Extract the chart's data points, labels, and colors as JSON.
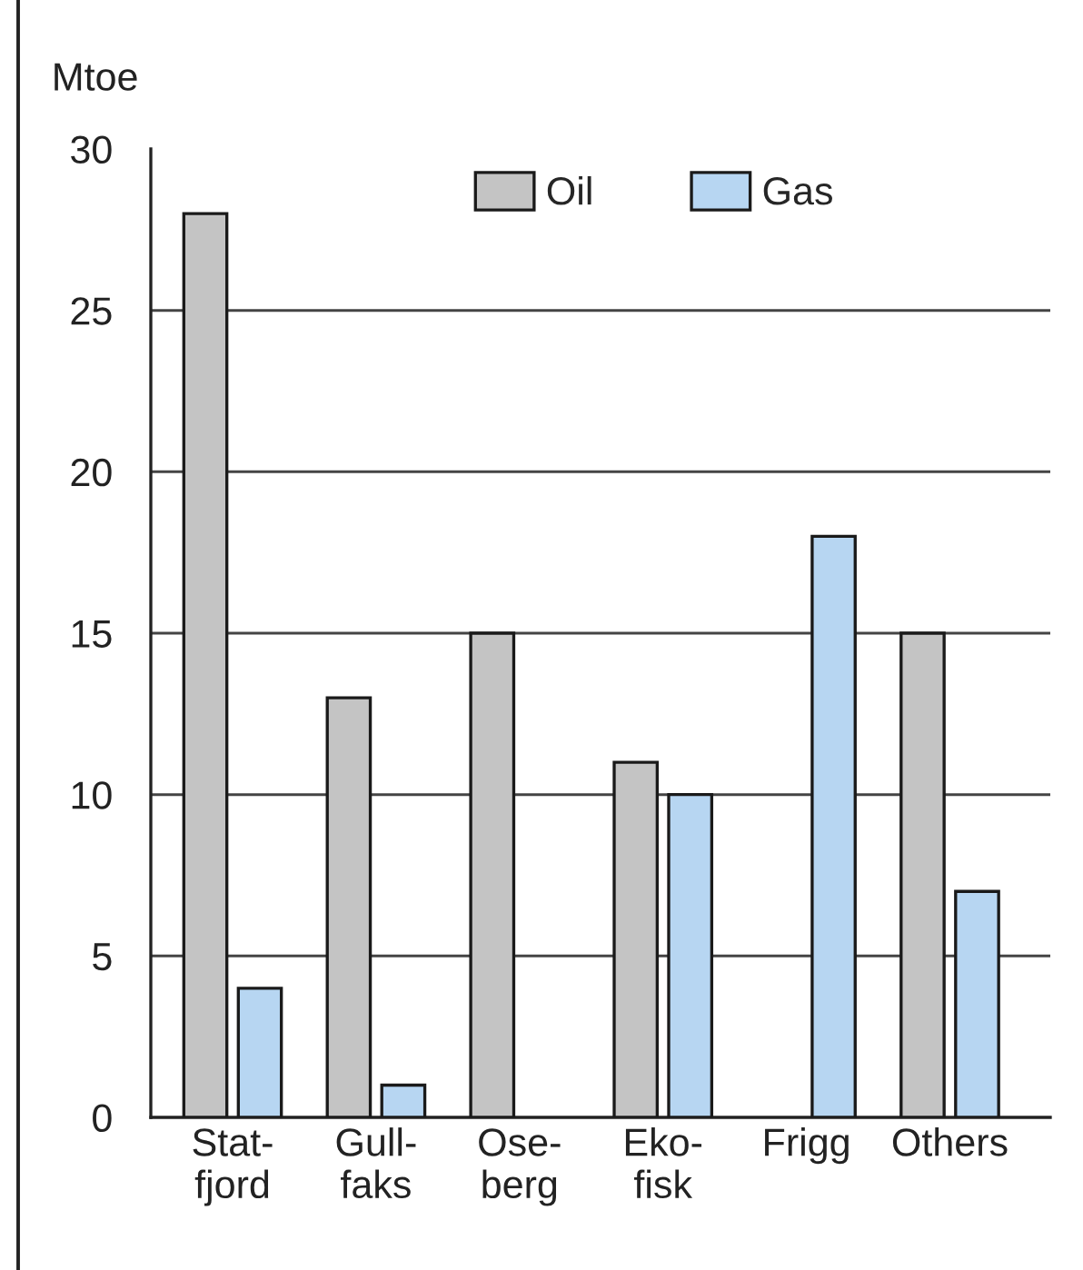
{
  "chart_data": {
    "type": "bar",
    "ylabel": "Mtoe",
    "categories": [
      "Stat-\nfjord",
      "Gull-\nfaks",
      "Ose-\nberg",
      "Eko-\nfisk",
      "Frigg",
      "Others"
    ],
    "series": [
      {
        "name": "Oil",
        "color": "#c4c4c4",
        "values": [
          28,
          13,
          15,
          11,
          null,
          15
        ]
      },
      {
        "name": "Gas",
        "color": "#b7d6f2",
        "values": [
          4,
          1,
          null,
          10,
          18,
          7
        ]
      }
    ],
    "ylim": [
      0,
      30
    ],
    "yticks": [
      0,
      5,
      10,
      15,
      20,
      25,
      30
    ],
    "grid": "y",
    "legend": "top"
  }
}
